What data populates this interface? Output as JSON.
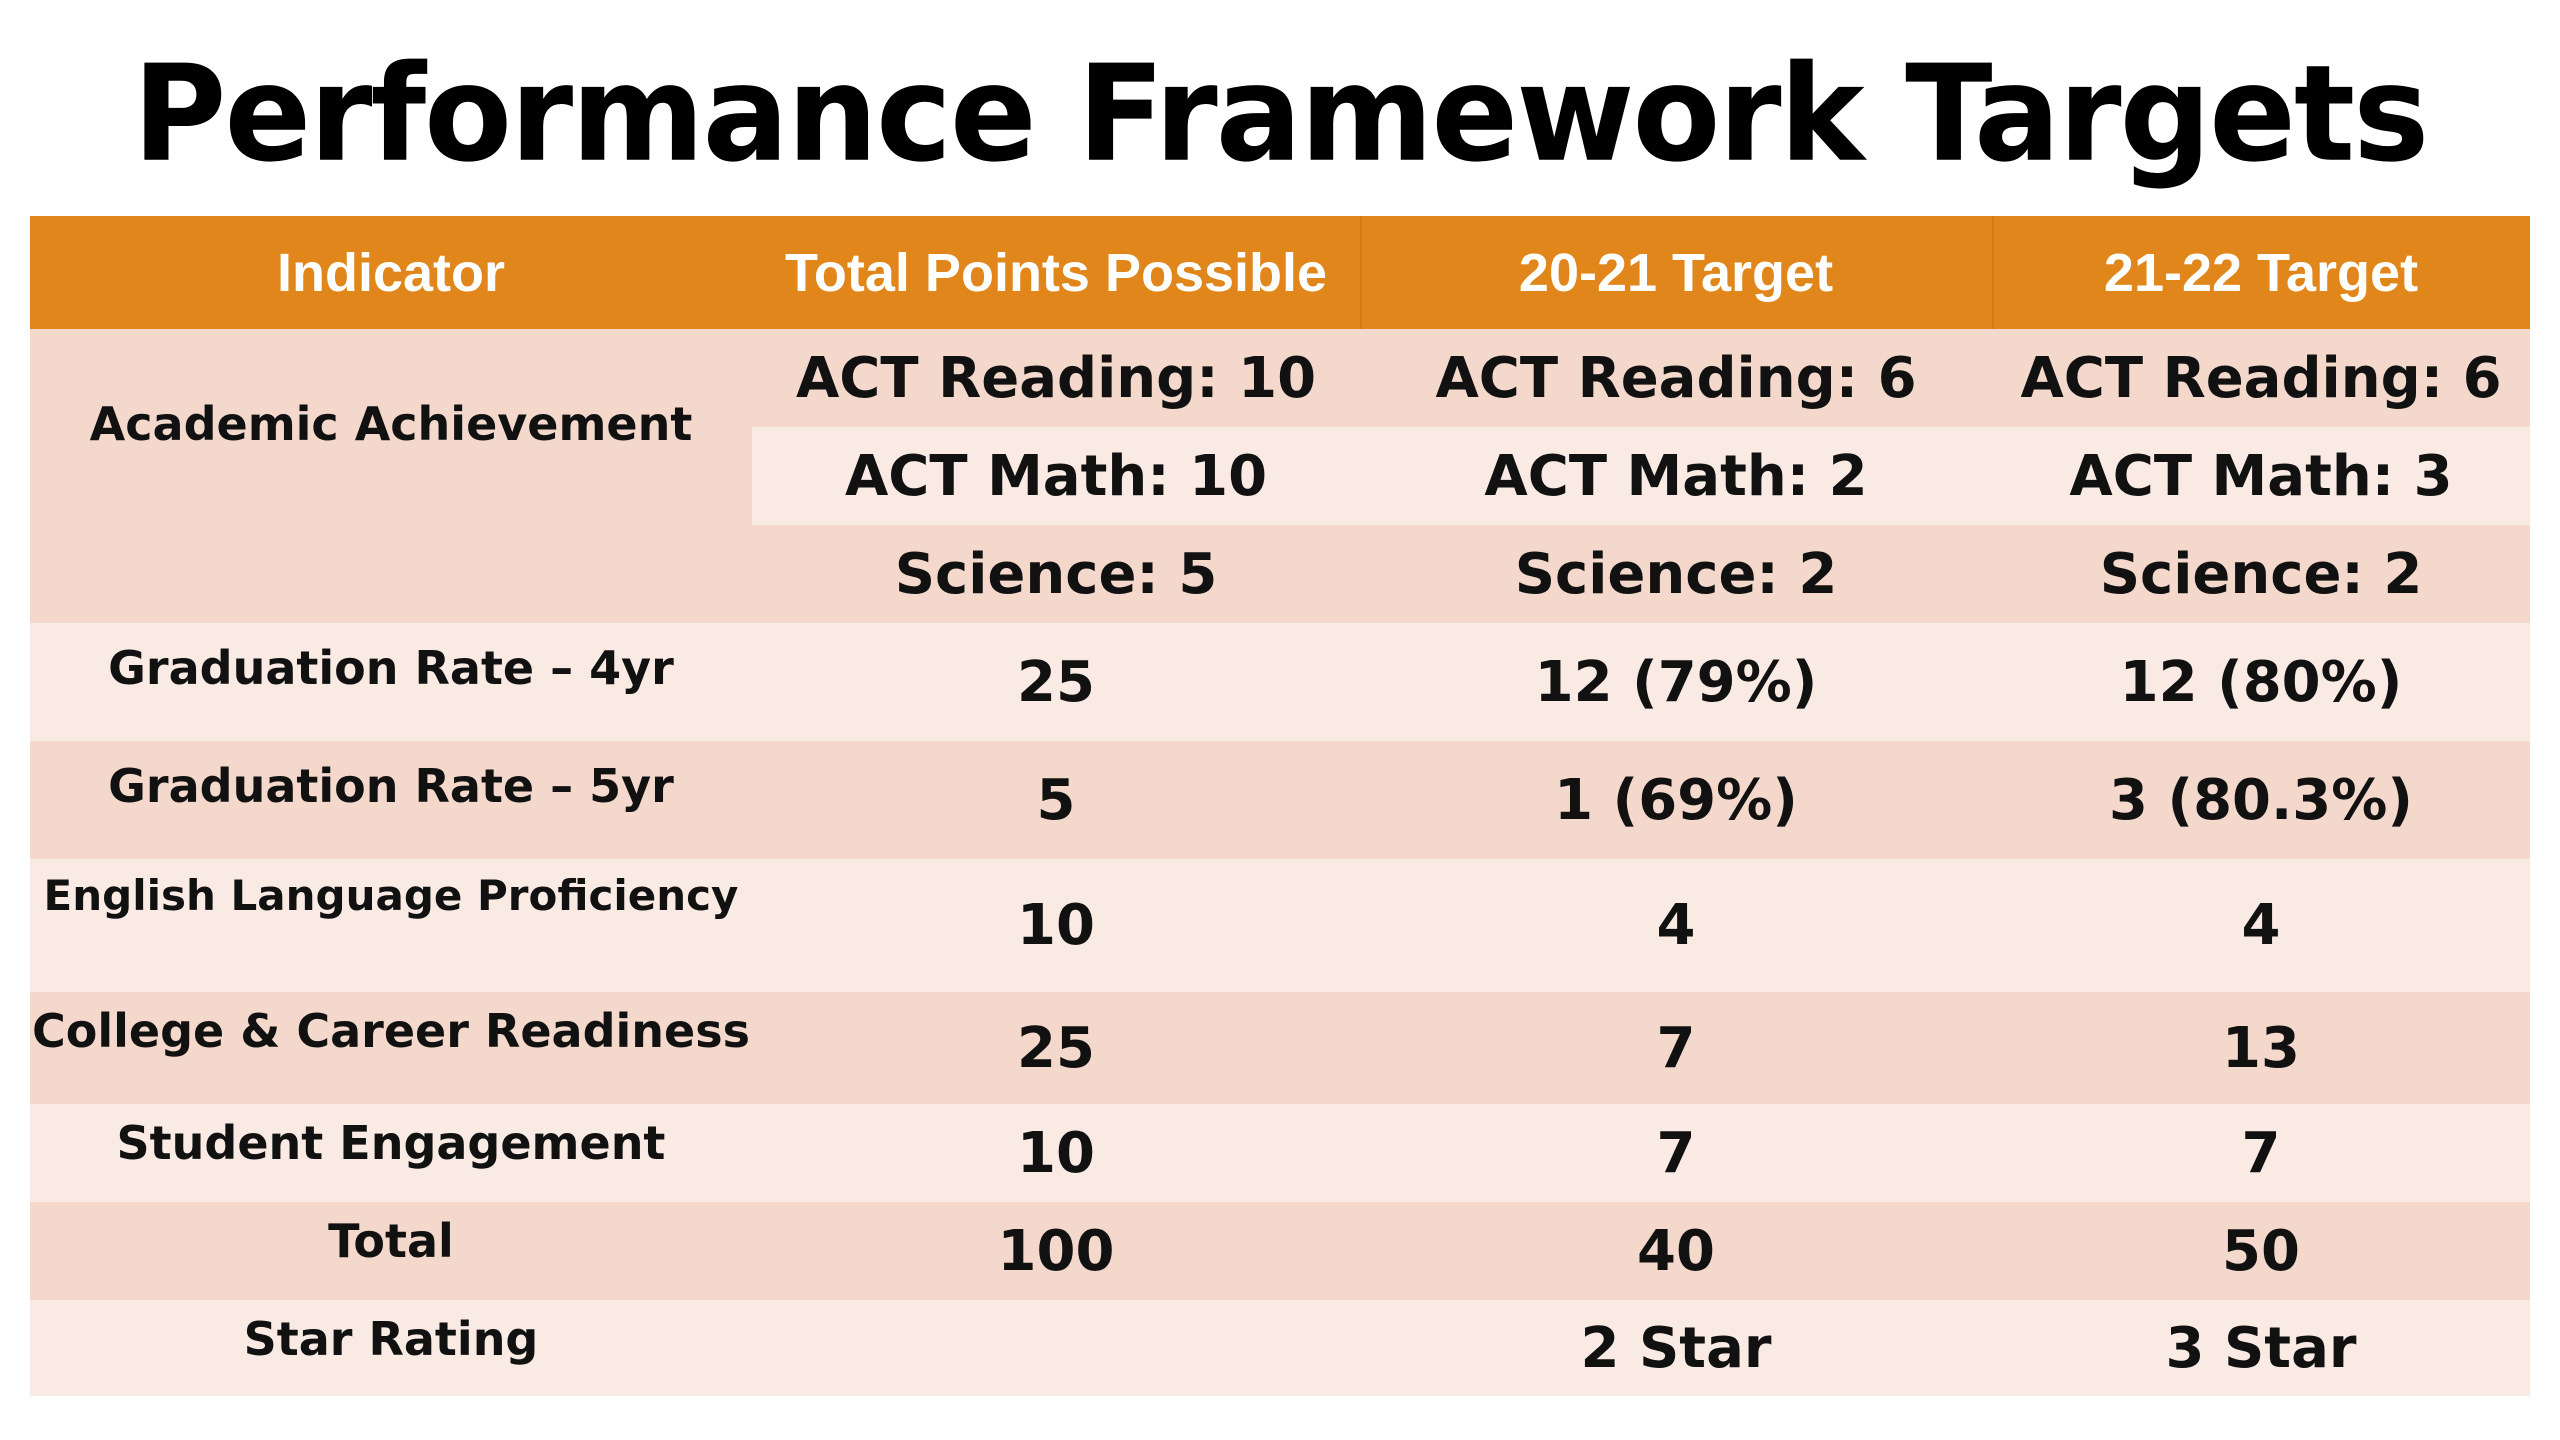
{
  "title": "Performance Framework Targets",
  "colors": {
    "header": "#e0861a",
    "row_dark": "#f3d8cb",
    "row_light": "#f9eae4",
    "header_text": "#ffffff",
    "body_text": "#111111"
  },
  "headers": {
    "indicator": "Indicator",
    "total_points": "Total Points Possible",
    "target_2021": "20-21 Target",
    "target_2122": "21-22 Target"
  },
  "academic_achievement": {
    "indicator": "Academic Achievement",
    "act_reading": {
      "total": "ACT Reading: 10",
      "t2021": "ACT Reading: 6",
      "t2122": "ACT Reading: 6"
    },
    "act_math": {
      "total": "ACT Math: 10",
      "t2021": "ACT Math: 2",
      "t2122": "ACT Math: 3"
    },
    "science": {
      "total": "Science: 5",
      "t2021": "Science: 2",
      "t2122": "Science: 2"
    }
  },
  "rows": [
    {
      "indicator": "Graduation Rate – 4yr",
      "total": "25",
      "t2021": "12 (79%)",
      "t2122": "12 (80%)"
    },
    {
      "indicator": "Graduation Rate – 5yr",
      "total": "5",
      "t2021": "1 (69%)",
      "t2122": "3 (80.3%)"
    },
    {
      "indicator": "English Language Proficiency",
      "total": "10",
      "t2021": "4",
      "t2122": "4"
    },
    {
      "indicator": "College & Career Readiness",
      "total": "25",
      "t2021": "7",
      "t2122": "13"
    },
    {
      "indicator": "Student Engagement",
      "total": "10",
      "t2021": "7",
      "t2122": "7"
    },
    {
      "indicator": "Total",
      "total": "100",
      "t2021": "40",
      "t2122": "50"
    },
    {
      "indicator": "Star Rating",
      "total": "",
      "t2021": "2 Star",
      "t2122": "3 Star"
    }
  ]
}
